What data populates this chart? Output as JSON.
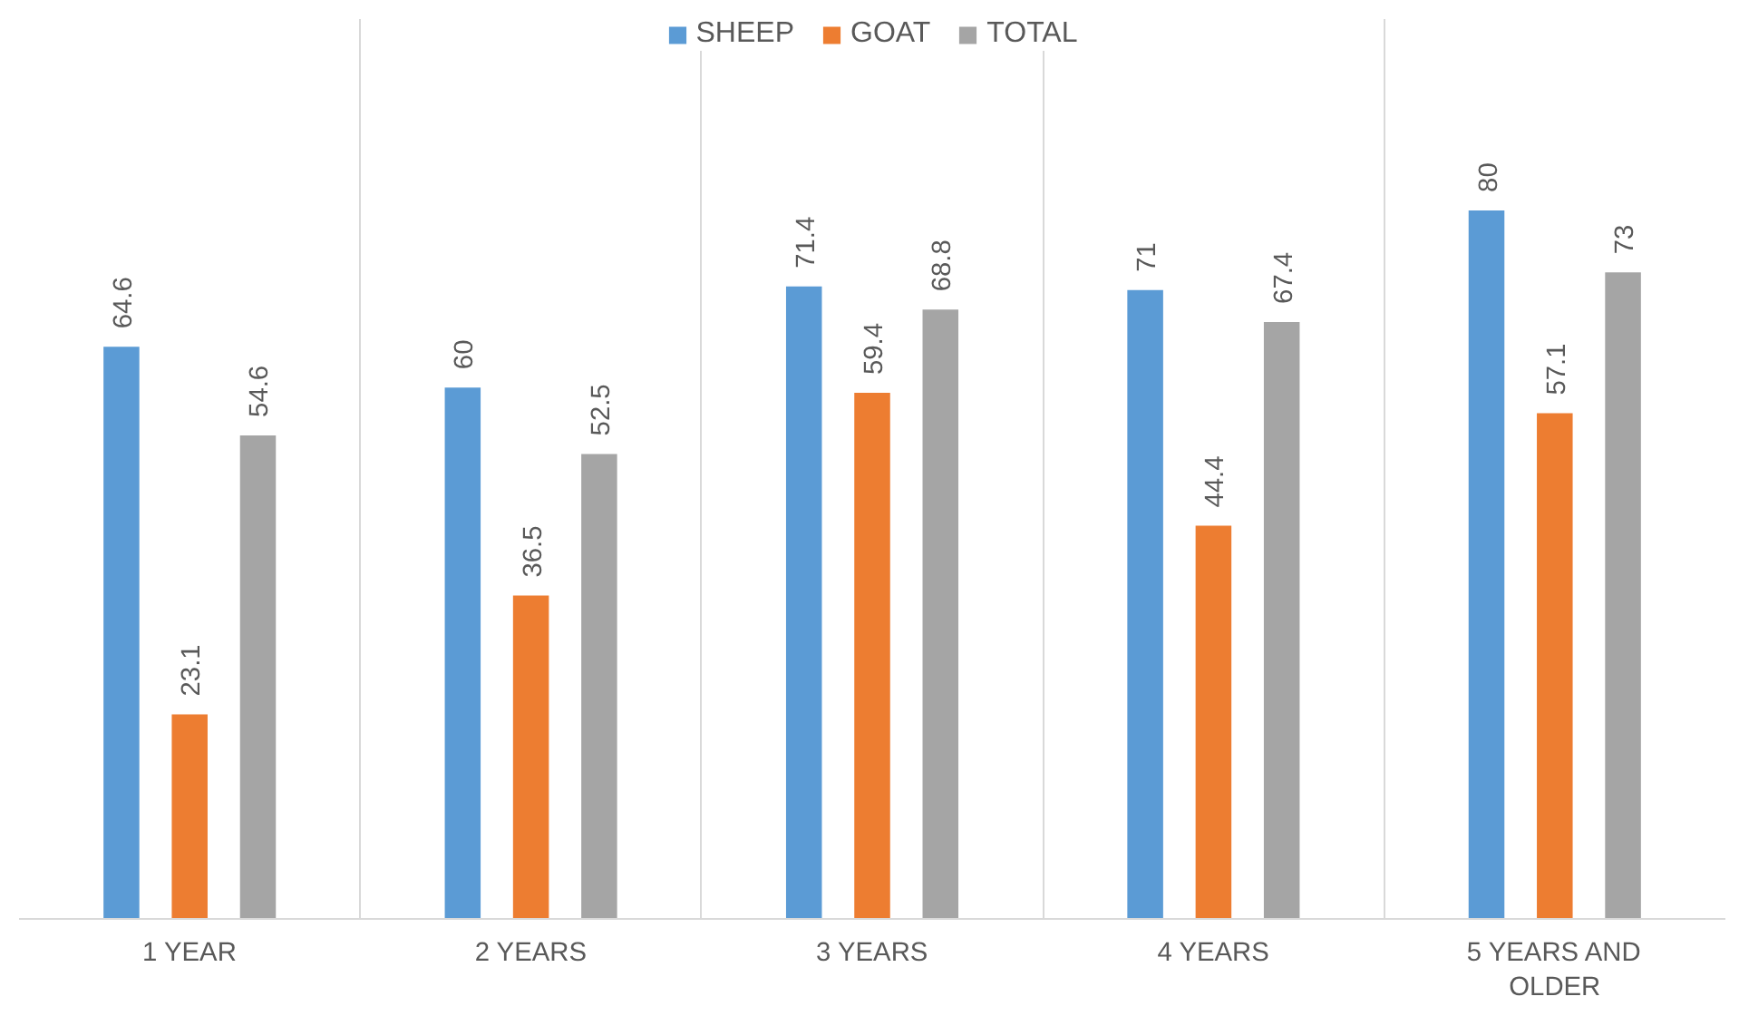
{
  "chart_data": {
    "type": "bar",
    "categories": [
      "1 YEAR",
      "2 YEARS",
      "3 YEARS",
      "4 YEARS",
      "5 YEARS AND OLDER"
    ],
    "series": [
      {
        "name": "SHEEP",
        "color": "#5b9bd5",
        "values": [
          64.6,
          60,
          71.4,
          71,
          80
        ]
      },
      {
        "name": "GOAT",
        "color": "#ed7d31",
        "values": [
          23.1,
          36.5,
          59.4,
          44.4,
          57.1
        ]
      },
      {
        "name": "TOTAL",
        "color": "#a5a5a5",
        "values": [
          54.6,
          52.5,
          68.8,
          67.4,
          73
        ]
      }
    ],
    "data_labels": true,
    "legend": "top",
    "grid": "x"
  }
}
